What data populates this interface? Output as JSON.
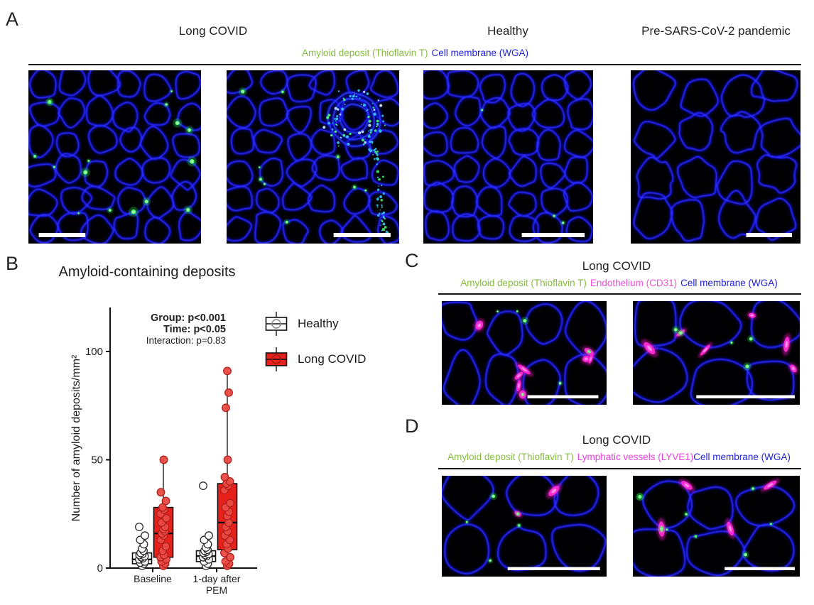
{
  "panels": {
    "A": {
      "label": "A",
      "titles": [
        {
          "text": "Long COVID"
        },
        {
          "text": "Healthy"
        },
        {
          "text": "Pre-SARS-CoV-2 pandemic"
        }
      ],
      "stain_legend": [
        {
          "text": "Amyloid deposit (Thioflavin T)",
          "color": "#86bd3e"
        },
        {
          "text": "Cell membrane (WGA)",
          "color": "#2121dd"
        }
      ],
      "images": [
        {
          "id": "a1",
          "group": "Long COVID",
          "amyloid_deposits": "many",
          "scale_bar": true
        },
        {
          "id": "a2",
          "group": "Long COVID",
          "amyloid_deposits": "many",
          "feature": "blood vessel ring",
          "scale_bar": true
        },
        {
          "id": "a3",
          "group": "Healthy",
          "amyloid_deposits": "rare",
          "scale_bar": true
        },
        {
          "id": "a4",
          "group": "Pre-SARS-CoV-2 pandemic",
          "amyloid_deposits": "none",
          "scale_bar": true
        }
      ]
    },
    "B": {
      "label": "B",
      "title": "Amyloid-containing deposits",
      "stats": [
        {
          "text": "Group: p<0.001",
          "bold": true
        },
        {
          "text": "Time: p<0.05",
          "bold": true
        },
        {
          "text": "Interaction: p=0.83",
          "bold": false
        }
      ]
    },
    "C": {
      "label": "C",
      "title": "Long COVID",
      "stain_legend": [
        {
          "text": "Amyloid deposit (Thioflavin T)",
          "color": "#86bd3e"
        },
        {
          "text": "Endothelium (CD31)",
          "color": "#f052d8"
        },
        {
          "text": "Cell membrane (WGA)",
          "color": "#2121dd"
        }
      ],
      "images": [
        {
          "id": "c1",
          "group": "Long COVID",
          "scale_bar": true
        },
        {
          "id": "c2",
          "group": "Long COVID",
          "scale_bar": true
        }
      ]
    },
    "D": {
      "label": "D",
      "title": "Long COVID",
      "stain_legend": [
        {
          "text": "Amyloid deposit (Thioflavin T)",
          "color": "#86bd3e"
        },
        {
          "text": "Lymphatic vessels (LYVE1)",
          "color": "#ee3fe4"
        },
        {
          "text": "Cell membrane (WGA)",
          "color": "#2121dd"
        }
      ],
      "images": [
        {
          "id": "d1",
          "group": "Long COVID",
          "scale_bar": true
        },
        {
          "id": "d2",
          "group": "Long COVID",
          "scale_bar": true
        }
      ]
    }
  },
  "chart_data": {
    "type": "boxplot",
    "title": "Amyloid-containing deposits",
    "ylabel": "Number of amyloid deposits/mm²",
    "ylim": [
      0,
      118
    ],
    "yticks": [
      0,
      50,
      100
    ],
    "categories": [
      "Baseline",
      "1-day after\nPEM"
    ],
    "annotations": [
      "Group: p<0.001",
      "Time: p<0.05",
      "Interaction: p=0.83"
    ],
    "legend_position": "right",
    "grid": false,
    "series": [
      {
        "name": "Healthy",
        "fill": "#ffffff",
        "point_fill": "#ffffff",
        "point_stroke": "#2b2b2b",
        "boxes": [
          {
            "category": "Baseline",
            "q1": 2,
            "median": 4,
            "q3": 7,
            "whisker_low": 0.5,
            "whisker_high": 9
          },
          {
            "category": "1-day after PEM",
            "q1": 3,
            "median": 5.5,
            "q3": 8,
            "whisker_low": 0.5,
            "whisker_high": 15
          }
        ],
        "points": [
          [
            19,
            15,
            13,
            11,
            9,
            8,
            7,
            6.5,
            6,
            5.5,
            5,
            4.5,
            4,
            3,
            2.5,
            2,
            1
          ],
          [
            38,
            15,
            13,
            11,
            9.5,
            8.5,
            8,
            7.5,
            7,
            6.5,
            6,
            5.5,
            5,
            4,
            3,
            2,
            1
          ]
        ]
      },
      {
        "name": "Long COVID",
        "fill": "#e8201c",
        "point_fill": "#ea4a44",
        "point_stroke": "#b0211b",
        "boxes": [
          {
            "category": "Baseline",
            "q1": 5,
            "median": 16,
            "q3": 28,
            "whisker_low": 0.5,
            "whisker_high": 50
          },
          {
            "category": "1-day after PEM",
            "q1": 8.5,
            "median": 21,
            "q3": 39,
            "whisker_low": 0.5,
            "whisker_high": 91
          }
        ],
        "points": [
          [
            50,
            35,
            31,
            28,
            27,
            25,
            23,
            21,
            19,
            18,
            17,
            16,
            15,
            13,
            10,
            8,
            6,
            5,
            4,
            3,
            2,
            1
          ],
          [
            91,
            81,
            74,
            50,
            42,
            40,
            39,
            38,
            36,
            30,
            28,
            26,
            24,
            21,
            19,
            17,
            15,
            13,
            11,
            9,
            7,
            5,
            3,
            2,
            1
          ]
        ]
      }
    ]
  }
}
